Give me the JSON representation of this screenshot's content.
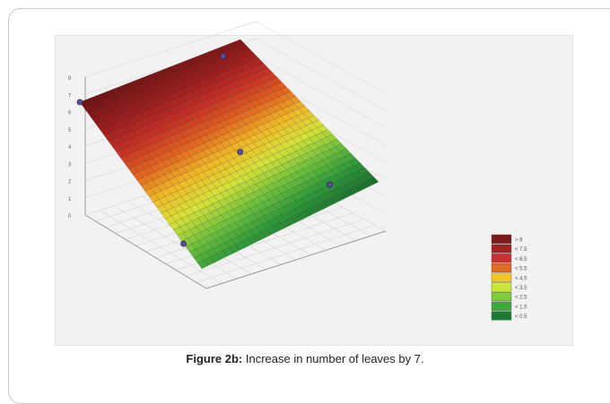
{
  "caption": {
    "label": "Figure 2b:",
    "text": " Increase in number of leaves by 7."
  },
  "chart_data": {
    "type": "surface3d",
    "z_range": [
      0,
      8
    ],
    "z_ticks": [
      "0",
      "1",
      "2",
      "3",
      "4",
      "5",
      "6",
      "7",
      "8"
    ],
    "points": [
      {
        "u": 0.0,
        "v": 0.85,
        "z": 6.8
      },
      {
        "u": 0.0,
        "v": 0.0,
        "z": 8.0
      },
      {
        "u": 0.55,
        "v": 0.55,
        "z": 5.9
      },
      {
        "u": 0.85,
        "v": 0.05,
        "z": 3.7
      },
      {
        "u": 0.8,
        "v": 0.9,
        "z": 2.4
      }
    ],
    "legend": {
      "placement": "bottom-right",
      "entries": [
        {
          "label": "> 8",
          "color": "#7a1a1a"
        },
        {
          "label": "< 7.5",
          "color": "#a32020"
        },
        {
          "label": "< 6.5",
          "color": "#c93030"
        },
        {
          "label": "< 5.5",
          "color": "#e06a20"
        },
        {
          "label": "< 4.5",
          "color": "#f2c81e"
        },
        {
          "label": "< 3.5",
          "color": "#cbe63a"
        },
        {
          "label": "< 2.5",
          "color": "#7fcc3a"
        },
        {
          "label": "< 1.5",
          "color": "#3fa83a"
        },
        {
          "label": "< 0.5",
          "color": "#1e7a34"
        }
      ]
    },
    "colorscale": [
      "#1f6f2e",
      "#2f9a3a",
      "#73c23d",
      "#d6e23a",
      "#f0b928",
      "#e2641f",
      "#c73026",
      "#9a1d1d",
      "#731414"
    ]
  }
}
